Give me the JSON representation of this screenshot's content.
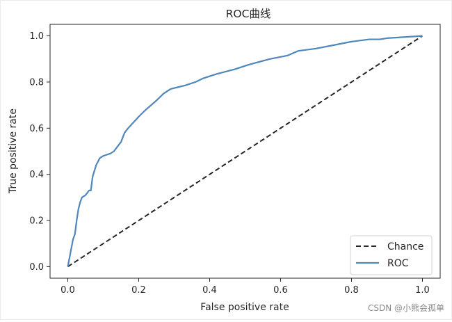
{
  "chart_data": {
    "type": "line",
    "title": "ROC曲线",
    "xlabel": "False positive rate",
    "ylabel": "True positive rate",
    "xlim": [
      -0.05,
      1.05
    ],
    "ylim": [
      -0.05,
      1.05
    ],
    "xticks": [
      0.0,
      0.2,
      0.4,
      0.6,
      0.8,
      1.0
    ],
    "yticks": [
      0.0,
      0.2,
      0.4,
      0.6,
      0.8,
      1.0
    ],
    "tick_labels_x": [
      "0.0",
      "0.2",
      "0.4",
      "0.6",
      "0.8",
      "1.0"
    ],
    "tick_labels_y": [
      "0.0",
      "0.2",
      "0.4",
      "0.6",
      "0.8",
      "1.0"
    ],
    "grid": false,
    "legend_position": "lower-right",
    "series": [
      {
        "name": "Chance",
        "style": "dashed",
        "color": "#262626",
        "x": [
          0.0,
          1.0
        ],
        "y": [
          0.0,
          1.0
        ]
      },
      {
        "name": "ROC",
        "style": "solid",
        "color": "#4f87bd",
        "x": [
          0.0,
          0.005,
          0.01,
          0.015,
          0.02,
          0.025,
          0.03,
          0.035,
          0.04,
          0.05,
          0.06,
          0.065,
          0.07,
          0.08,
          0.09,
          0.1,
          0.12,
          0.13,
          0.15,
          0.16,
          0.17,
          0.2,
          0.22,
          0.25,
          0.27,
          0.29,
          0.33,
          0.36,
          0.38,
          0.42,
          0.47,
          0.51,
          0.57,
          0.62,
          0.65,
          0.7,
          0.75,
          0.8,
          0.85,
          0.88,
          0.9,
          0.95,
          1.0
        ],
        "y": [
          0.0,
          0.04,
          0.08,
          0.12,
          0.14,
          0.2,
          0.25,
          0.28,
          0.3,
          0.31,
          0.33,
          0.33,
          0.39,
          0.44,
          0.47,
          0.48,
          0.49,
          0.5,
          0.54,
          0.58,
          0.6,
          0.65,
          0.68,
          0.72,
          0.75,
          0.77,
          0.785,
          0.8,
          0.815,
          0.835,
          0.855,
          0.875,
          0.9,
          0.915,
          0.935,
          0.945,
          0.96,
          0.975,
          0.985,
          0.985,
          0.99,
          0.995,
          1.0
        ]
      }
    ]
  },
  "watermark": "CSDN @小熊会孤单"
}
